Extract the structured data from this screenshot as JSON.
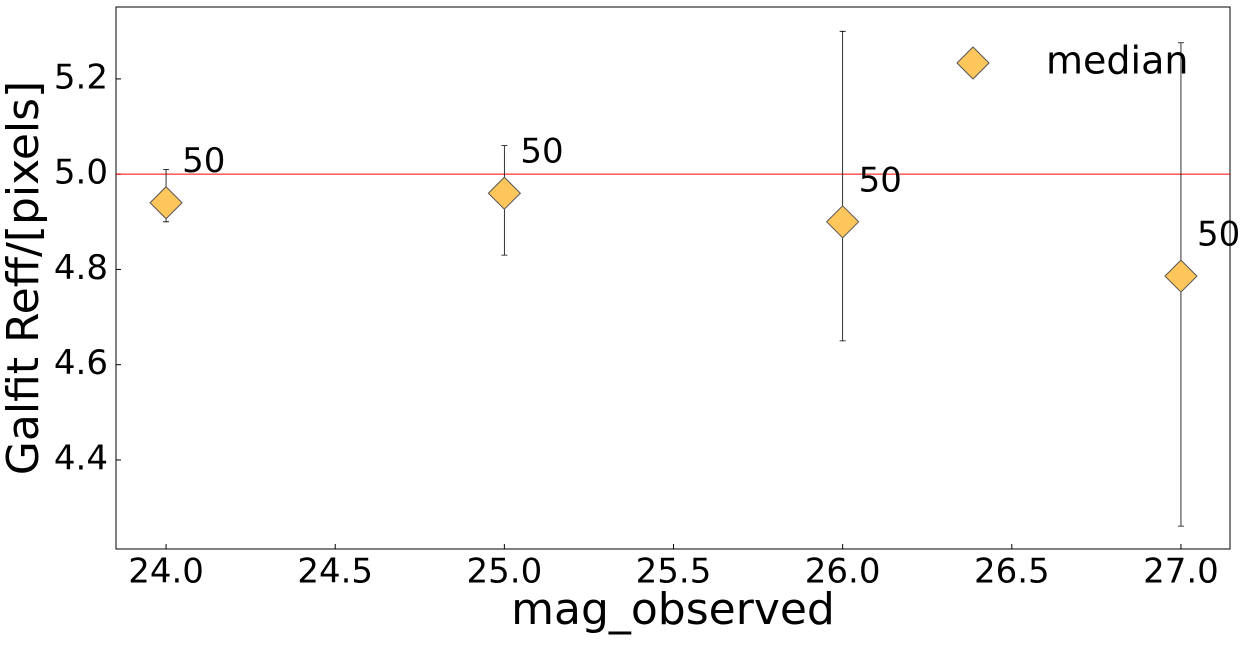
{
  "chart_data": {
    "type": "scatter",
    "xlabel": "mag_observed",
    "ylabel": "Galfit Reff/[pixels]",
    "x": [
      24,
      25,
      26,
      27
    ],
    "series": [
      {
        "name": "median",
        "color": "#ffc65c",
        "edgecolor": "#555555",
        "values": [
          4.94,
          4.96,
          4.9,
          4.786
        ],
        "yerr_minus": [
          0.04,
          0.13,
          0.25,
          0.525
        ],
        "yerr_plus": [
          0.07,
          0.1,
          0.4,
          0.49
        ],
        "counts": [
          50,
          50,
          50,
          50
        ]
      }
    ],
    "hline": {
      "value": 5.0,
      "color": "#ff0000"
    },
    "xlim": [
      23.852,
      27.145
    ],
    "ylim": [
      4.213,
      5.351
    ],
    "xticks": [
      {
        "value": 24,
        "label": "24.0"
      },
      24.5,
      {
        "value": 25,
        "label": "25.0"
      },
      25.5,
      {
        "value": 26,
        "label": "26.0"
      },
      26.5,
      {
        "value": 27,
        "label": "27.0"
      }
    ],
    "yticks": [
      4.4,
      4.6,
      4.8,
      {
        "value": 5,
        "label": "5.0"
      },
      5.2
    ],
    "legend": "upper right",
    "grid": false
  }
}
